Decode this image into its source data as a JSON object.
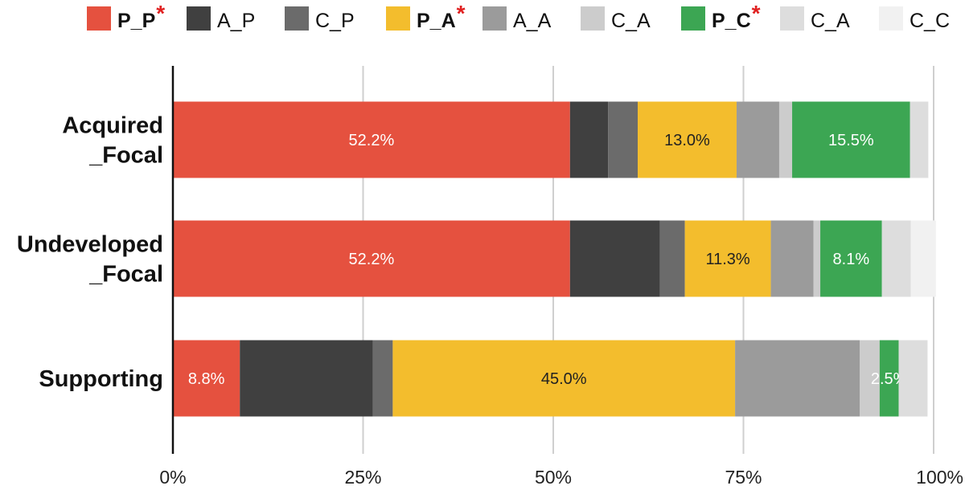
{
  "chart_data": {
    "type": "bar",
    "orientation": "horizontal",
    "stacked": true,
    "title": "",
    "xlabel": "",
    "ylabel": "",
    "xlim": [
      0,
      100
    ],
    "x_tick_labels": [
      "0%",
      "25%",
      "50%",
      "75%",
      "100%"
    ],
    "x_ticks": [
      0,
      25,
      50,
      75,
      100
    ],
    "grid": true,
    "legend_position": "top",
    "categories": [
      "Acquired\n_Focal",
      "Undeveloped\n_Focal",
      "Supporting"
    ],
    "series": [
      {
        "name": "P_P",
        "bold": true,
        "highlight": "*",
        "color": "#e5513f",
        "values": [
          52.2,
          52.2,
          8.8
        ],
        "labels": [
          "52.2%",
          "52.2%",
          "8.8%"
        ],
        "label_color": "#ffffff"
      },
      {
        "name": "A_P",
        "bold": false,
        "color": "#404040",
        "values": [
          5.0,
          11.8,
          17.5
        ],
        "labels": [
          "",
          "",
          ""
        ],
        "label_color": "#ffffff"
      },
      {
        "name": "C_P",
        "bold": false,
        "color": "#6b6b6b",
        "values": [
          3.9,
          3.3,
          2.6
        ],
        "labels": [
          "",
          "",
          ""
        ],
        "label_color": "#ffffff"
      },
      {
        "name": "P_A",
        "bold": true,
        "highlight": "*",
        "color": "#f3bd2d",
        "values": [
          13.0,
          11.3,
          45.0
        ],
        "labels": [
          "13.0%",
          "11.3%",
          "45.0%"
        ],
        "label_color": "#222222"
      },
      {
        "name": "A_A",
        "bold": false,
        "color": "#9b9b9b",
        "values": [
          5.6,
          5.6,
          16.4
        ],
        "labels": [
          "",
          "",
          ""
        ],
        "label_color": "#ffffff"
      },
      {
        "name": "C_A",
        "bold": false,
        "color": "#cccccc",
        "values": [
          1.7,
          0.9,
          2.6
        ],
        "labels": [
          "",
          "",
          ""
        ],
        "label_color": "#ffffff"
      },
      {
        "name": "P_C",
        "bold": true,
        "highlight": "*",
        "color": "#3ca653",
        "values": [
          15.5,
          8.1,
          2.5
        ],
        "labels": [
          "15.5%",
          "8.1%",
          "2.5%"
        ],
        "label_color": "#ffffff"
      },
      {
        "name": "C_A",
        "bold": false,
        "color": "#dddddd",
        "values": [
          2.4,
          3.8,
          3.8
        ],
        "labels": [
          "",
          "",
          ""
        ],
        "label_color": "#ffffff"
      },
      {
        "name": "C_C",
        "bold": false,
        "color": "#f1f1f1",
        "values": [
          0.0,
          3.3,
          0.0
        ],
        "labels": [
          "",
          "",
          ""
        ],
        "label_color": "#ffffff"
      }
    ]
  }
}
